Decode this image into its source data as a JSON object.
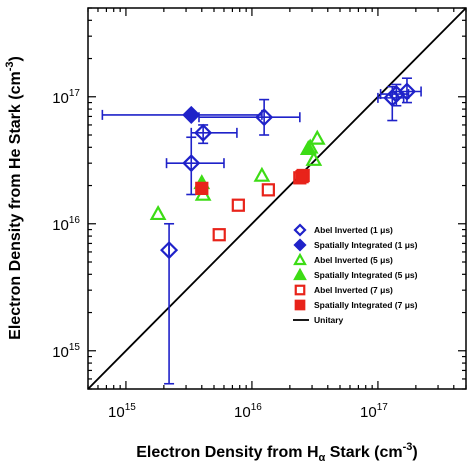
{
  "chart_data": {
    "type": "scatter",
    "x_scale": "log",
    "y_scale": "log",
    "xlim": [
      500000000000000.0,
      5e+17
    ],
    "ylim": [
      500000000000000.0,
      5e+17
    ],
    "xlabel_main": "Electron Density from H",
    "xlabel_sub": "α",
    "xlabel_tail": " Stark (cm",
    "xlabel_exp": "-3",
    "xlabel_end": ")",
    "ylabel_main": "Electron Density from He Stark (cm",
    "ylabel_exp": "-3",
    "ylabel_end": ")",
    "x_ticks": [
      {
        "value": 1000000000000000.0,
        "base": "10",
        "exp": "15"
      },
      {
        "value": 1e+16,
        "base": "10",
        "exp": "16"
      },
      {
        "value": 1e+17,
        "base": "10",
        "exp": "17"
      }
    ],
    "y_ticks": [
      {
        "value": 1000000000000000.0,
        "base": "10",
        "exp": "15"
      },
      {
        "value": 1e+16,
        "base": "10",
        "exp": "16"
      },
      {
        "value": 1e+17,
        "base": "10",
        "exp": "17"
      }
    ],
    "legend_position": "bottom-right",
    "series": [
      {
        "name": "Abel Inverted (1 μs)",
        "marker": "diamond-open",
        "color": "#1f22c9",
        "points": [
          {
            "x": 2200000000000000.0,
            "y": 6200000000000000.0,
            "xerr": [
              2200000000000000.0,
              2200000000000000.0
            ],
            "yerr": [
              550000000000000.0,
              1e+16
            ]
          },
          {
            "x": 3300000000000000.0,
            "y": 3e+16,
            "xerr": [
              2100000000000000.0,
              6000000000000000.0
            ],
            "yerr": [
              1.7e+16,
              4.8e+16
            ]
          },
          {
            "x": 4100000000000000.0,
            "y": 5.2e+16,
            "xerr": [
              3300000000000000.0,
              7600000000000000.0
            ],
            "yerr": [
              4.3e+16,
              6e+16
            ]
          },
          {
            "x": 1.25e+16,
            "y": 6.9e+16,
            "xerr": [
              3800000000000000.0,
              2.4e+16
            ],
            "yerr": [
              5e+16,
              9.5e+16
            ]
          },
          {
            "x": 1.3e+17,
            "y": 9.8e+16,
            "xerr": [
              1e+17,
              1.6e+17
            ],
            "yerr": [
              6.5e+16,
              1.2e+17
            ]
          },
          {
            "x": 1.4e+17,
            "y": 1.05e+17,
            "xerr": [
              1.05e+17,
              1.75e+17
            ],
            "yerr": [
              8.5e+16,
              1.25e+17
            ]
          },
          {
            "x": 1.7e+17,
            "y": 1.1e+17,
            "xerr": [
              1.3e+17,
              2.2e+17
            ],
            "yerr": [
              9e+16,
              1.4e+17
            ]
          }
        ]
      },
      {
        "name": "Spatially Integrated (1 μs)",
        "marker": "diamond-filled",
        "color": "#1f22c9",
        "points": [
          {
            "x": 3300000000000000.0,
            "y": 7.2e+16,
            "xerr": [
              650000000000000.0,
              1.2e+16
            ],
            "yerr": null
          }
        ]
      },
      {
        "name": "Abel Inverted (5 μs)",
        "marker": "triangle-open",
        "color": "#3ddc15",
        "points": [
          {
            "x": 1800000000000000.0,
            "y": 1.2e+16
          },
          {
            "x": 4100000000000000.0,
            "y": 1.7e+16
          },
          {
            "x": 1.2e+16,
            "y": 2.4e+16
          },
          {
            "x": 2.9e+16,
            "y": 4e+16
          },
          {
            "x": 3.1e+16,
            "y": 3.2e+16
          },
          {
            "x": 3.3e+16,
            "y": 4.7e+16
          }
        ]
      },
      {
        "name": "Spatially Integrated (5 μs)",
        "marker": "triangle-filled",
        "color": "#3ddc15",
        "points": [
          {
            "x": 2.8e+16,
            "y": 3.9e+16
          },
          {
            "x": 4000000000000000.0,
            "y": 2.1e+16
          }
        ]
      },
      {
        "name": "Abel Inverted (7 μs)",
        "marker": "square-open",
        "color": "#e8231a",
        "points": [
          {
            "x": 5500000000000000.0,
            "y": 8200000000000000.0
          },
          {
            "x": 7800000000000000.0,
            "y": 1.4e+16
          },
          {
            "x": 1.35e+16,
            "y": 1.85e+16
          },
          {
            "x": 2.4e+16,
            "y": 2.3e+16
          },
          {
            "x": 2.55e+16,
            "y": 2.4e+16
          }
        ]
      },
      {
        "name": "Spatially Integrated (7 μs)",
        "marker": "square-filled",
        "color": "#e8231a",
        "points": [
          {
            "x": 4000000000000000.0,
            "y": 1.9e+16
          },
          {
            "x": 2.5e+16,
            "y": 2.35e+16
          }
        ]
      },
      {
        "name": "Unitary",
        "marker": "line",
        "color": "#000000",
        "line": [
          [
            500000000000000.0,
            500000000000000.0
          ],
          [
            5e+17,
            5e+17
          ]
        ]
      }
    ]
  }
}
